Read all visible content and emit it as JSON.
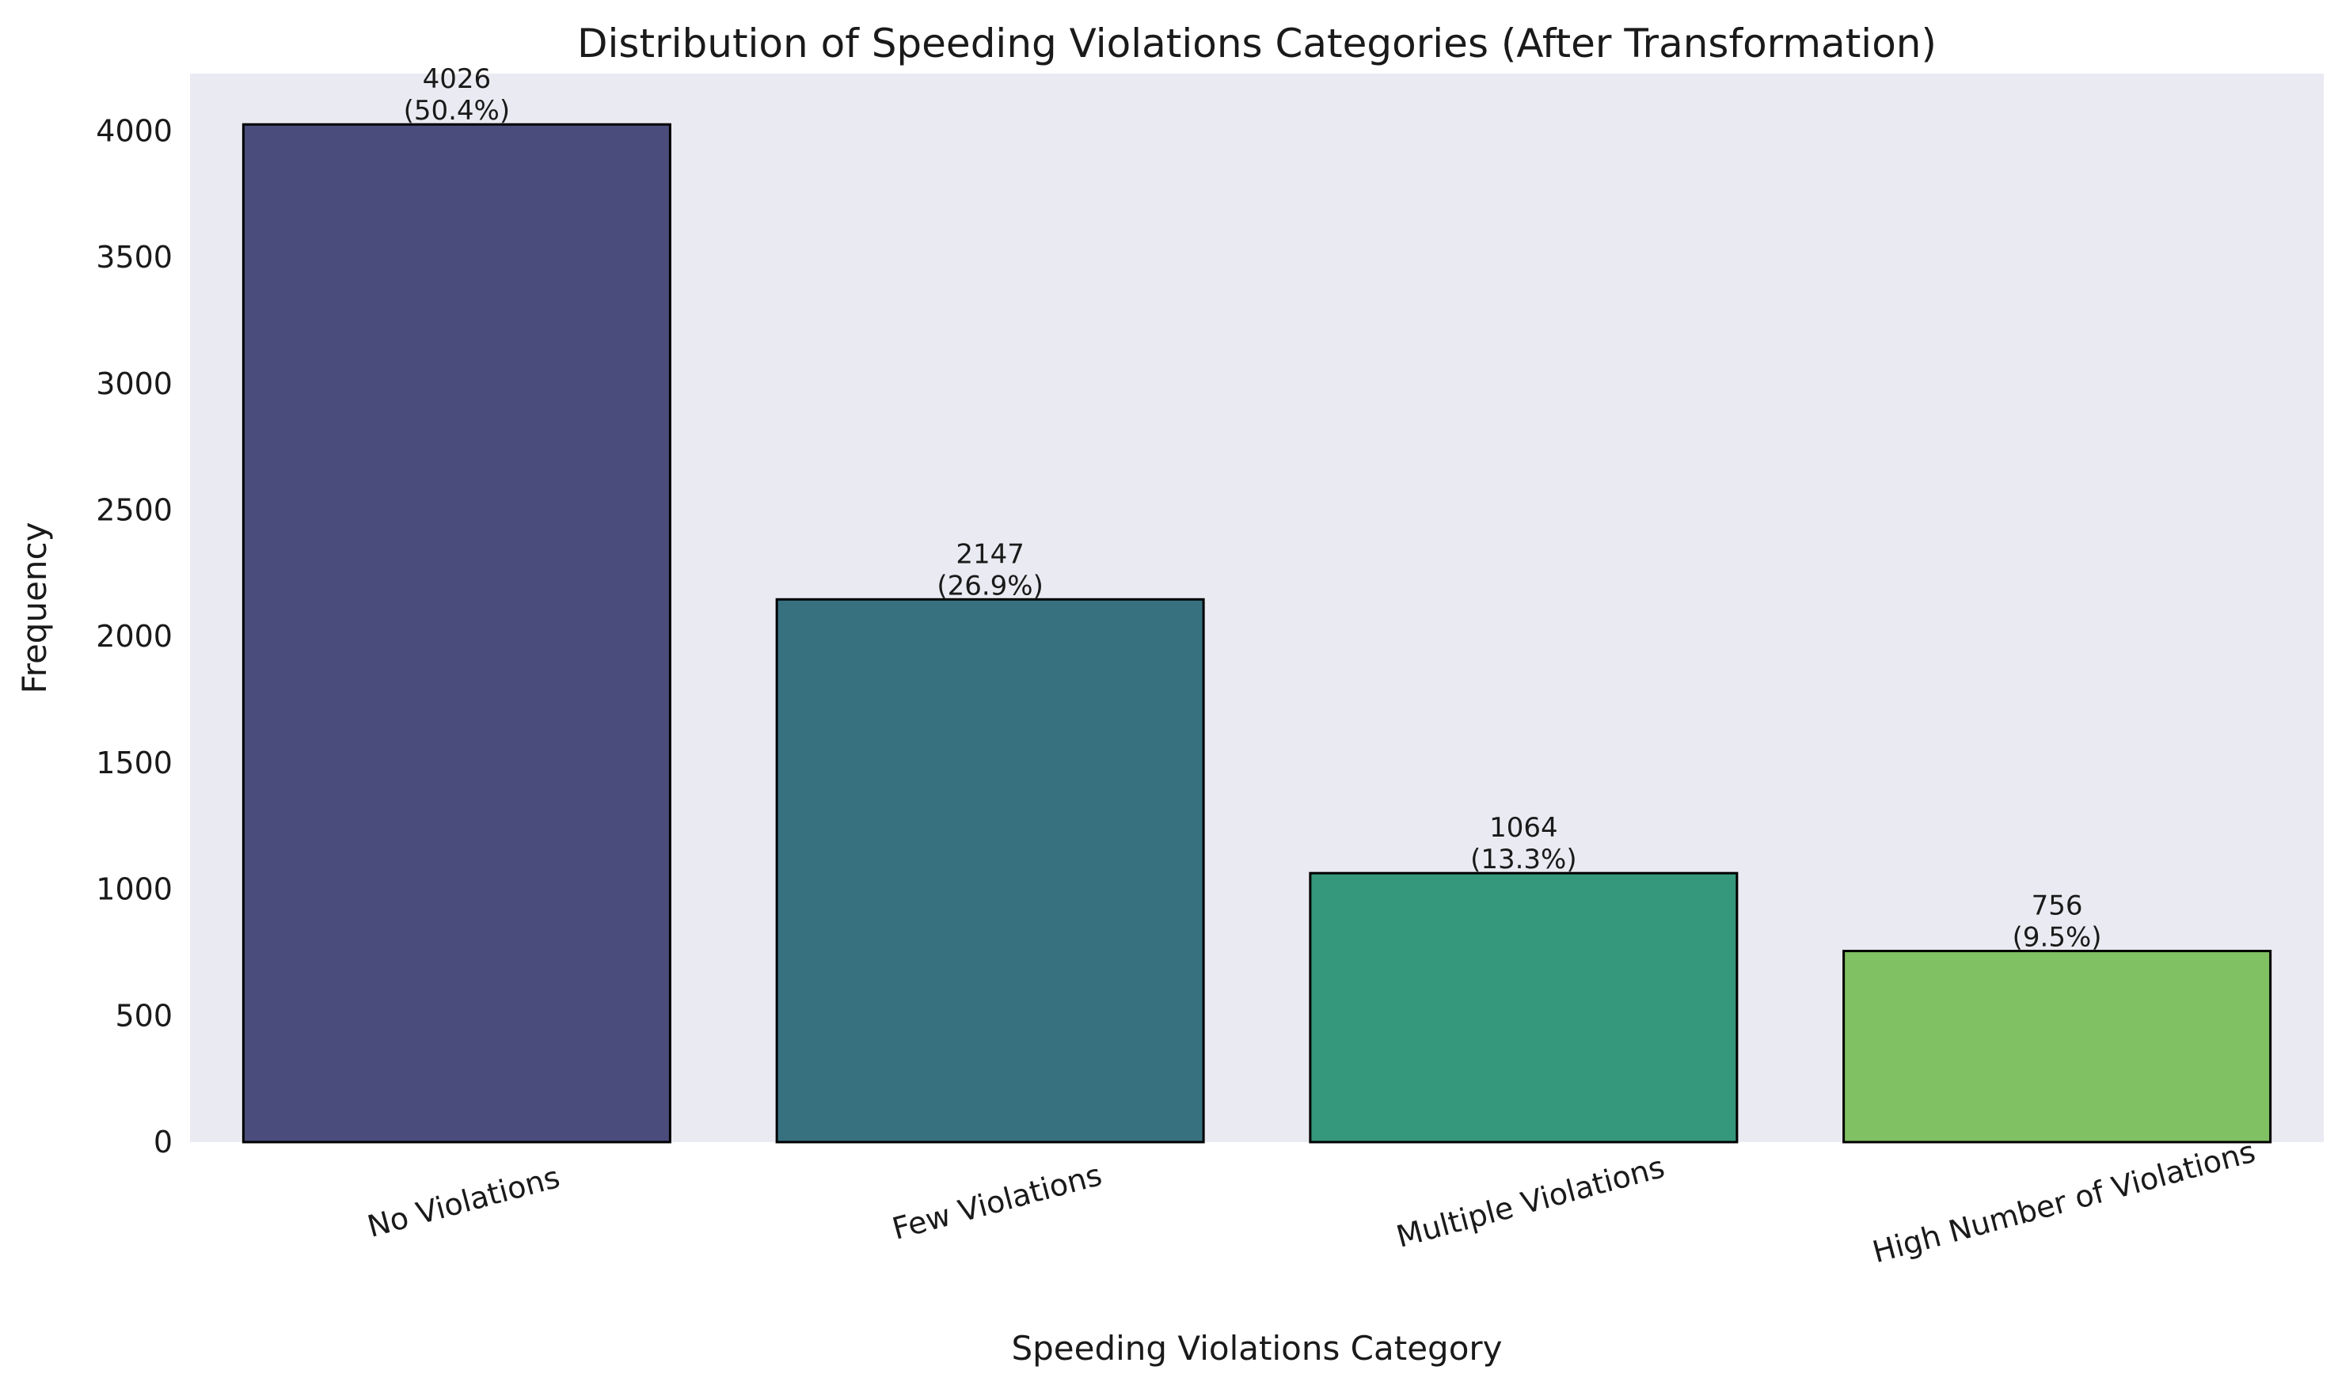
{
  "chart_data": {
    "type": "bar",
    "title": "Distribution of Speeding Violations Categories (After Transformation)",
    "xlabel": "Speeding Violations Category",
    "ylabel": "Frequency",
    "categories": [
      "No Violations",
      "Few Violations",
      "Multiple Violations",
      "High Number of Violations"
    ],
    "values": [
      4026,
      2147,
      1064,
      756
    ],
    "percent_labels": [
      "(50.4%)",
      "(26.9%)",
      "(13.3%)",
      "(9.5%)"
    ],
    "colors": [
      "#4a4c7c",
      "#377180",
      "#35977b",
      "#80c163"
    ],
    "bar_edge_color": "#000000",
    "plot_background": "#eaeaf2",
    "ylim": [
      0,
      4227
    ],
    "yticks": [
      0,
      500,
      1000,
      1500,
      2000,
      2500,
      3000,
      3500,
      4000
    ],
    "xtick_rotation_deg": 15,
    "grid": false,
    "legend": "none"
  }
}
